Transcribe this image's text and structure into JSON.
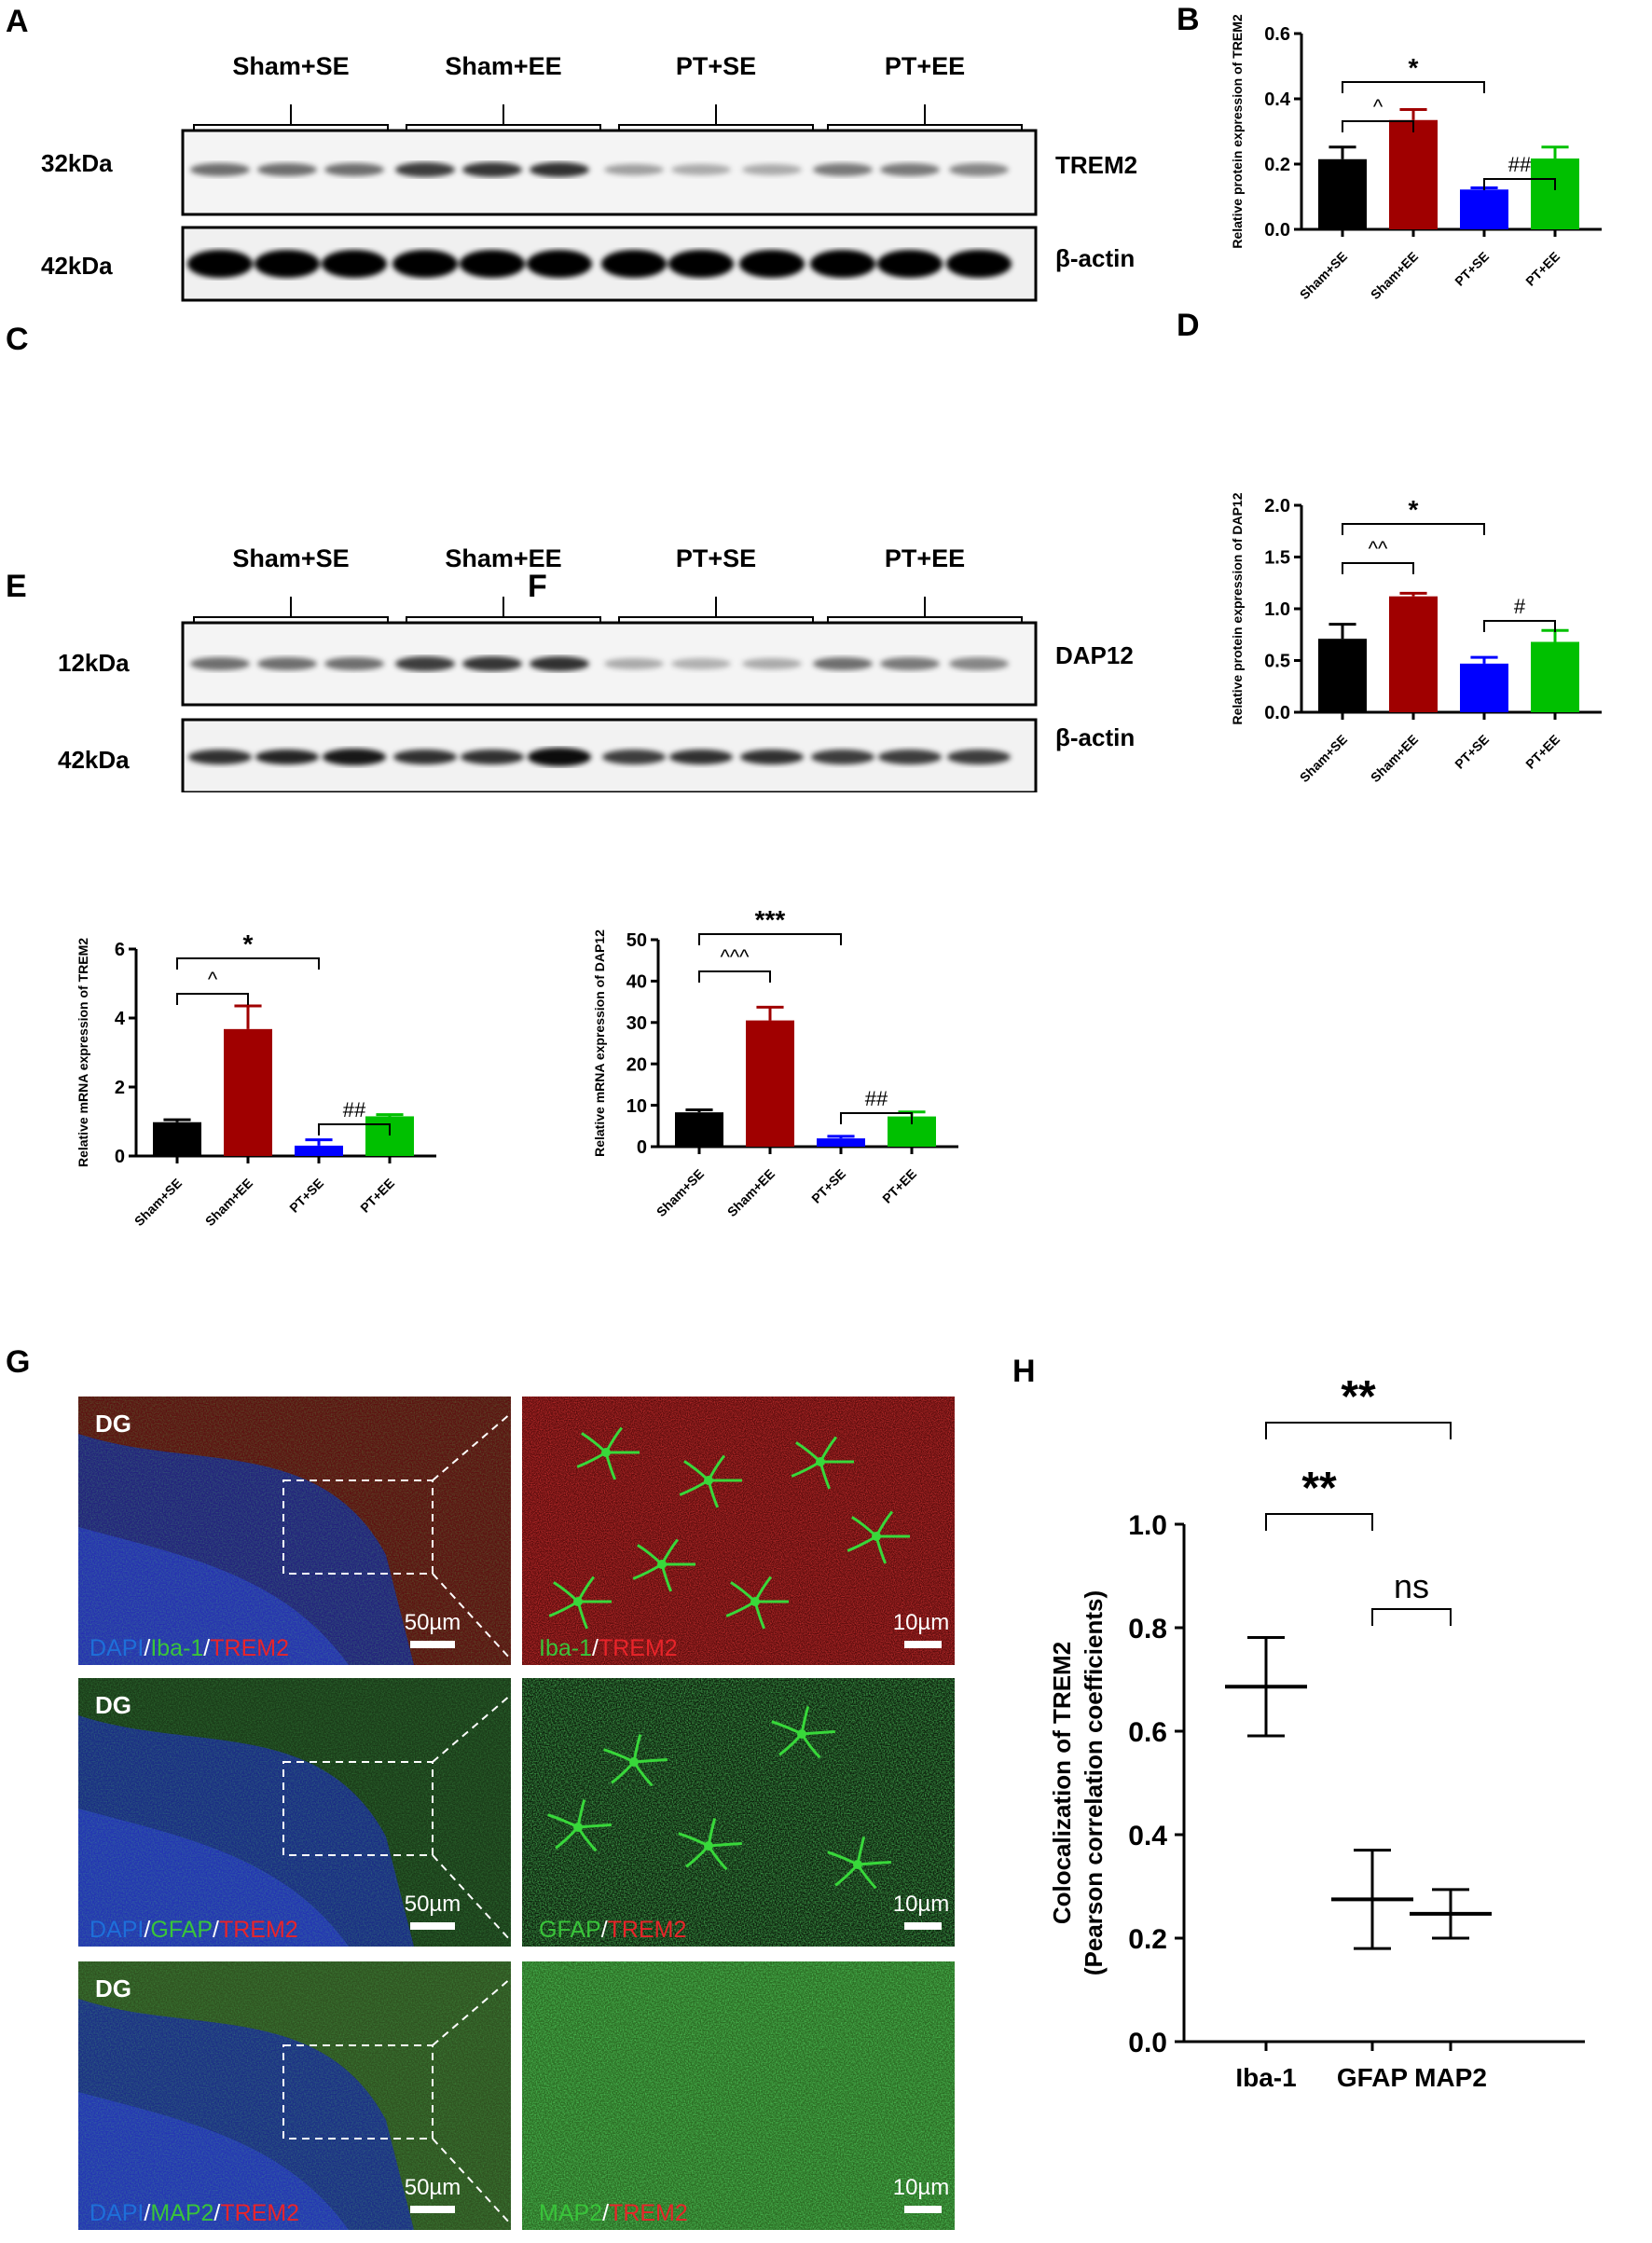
{
  "panels": {
    "A": "A",
    "B": "B",
    "C": "C",
    "D": "D",
    "E": "E",
    "F": "F",
    "G": "G",
    "H": "H"
  },
  "blotA": {
    "groups": [
      "Sham+SE",
      "Sham+EE",
      "PT+SE",
      "PT+EE"
    ],
    "rows": [
      {
        "mw": "32kDa",
        "target": "TREM2"
      },
      {
        "mw": "42kDa",
        "target": "β-actin"
      }
    ]
  },
  "blotC": {
    "groups": [
      "Sham+SE",
      "Sham+EE",
      "PT+SE",
      "PT+EE"
    ],
    "rows": [
      {
        "mw": "12kDa",
        "target": "DAP12"
      },
      {
        "mw": "42kDa",
        "target": "β-actin"
      }
    ]
  },
  "micrographs": {
    "region_label": "DG",
    "scale_overview": "50µm",
    "scale_zoom": "10µm",
    "rows": [
      {
        "overview": [
          {
            "t": "DAPI",
            "c": "#1e6fd9"
          },
          {
            "t": "/",
            "c": "#ffffff"
          },
          {
            "t": "Iba-1",
            "c": "#39c43a"
          },
          {
            "t": "/",
            "c": "#ffffff"
          },
          {
            "t": "TREM2",
            "c": "#e8242a"
          }
        ],
        "zoom": [
          {
            "t": "Iba-1",
            "c": "#39c43a"
          },
          {
            "t": "/",
            "c": "#ffffff"
          },
          {
            "t": "TREM2",
            "c": "#e8242a"
          }
        ]
      },
      {
        "overview": [
          {
            "t": "DAPI",
            "c": "#1e6fd9"
          },
          {
            "t": "/",
            "c": "#ffffff"
          },
          {
            "t": "GFAP",
            "c": "#39c43a"
          },
          {
            "t": "/",
            "c": "#ffffff"
          },
          {
            "t": "TREM2",
            "c": "#e8242a"
          }
        ],
        "zoom": [
          {
            "t": "GFAP",
            "c": "#39c43a"
          },
          {
            "t": "/",
            "c": "#ffffff"
          },
          {
            "t": "TREM2",
            "c": "#e8242a"
          }
        ]
      },
      {
        "overview": [
          {
            "t": "DAPI",
            "c": "#1e6fd9"
          },
          {
            "t": "/",
            "c": "#ffffff"
          },
          {
            "t": "MAP2",
            "c": "#39c43a"
          },
          {
            "t": "/",
            "c": "#ffffff"
          },
          {
            "t": "TREM2",
            "c": "#e8242a"
          }
        ],
        "zoom": [
          {
            "t": "MAP2",
            "c": "#39c43a"
          },
          {
            "t": "/",
            "c": "#ffffff"
          },
          {
            "t": "TREM2",
            "c": "#e8242a"
          }
        ]
      }
    ]
  },
  "chart_data": [
    {
      "id": "B",
      "type": "bar",
      "categories": [
        "Sham+SE",
        "Sham+EE",
        "PT+SE",
        "PT+EE"
      ],
      "values": [
        0.215,
        0.335,
        0.122,
        0.217
      ],
      "errors": [
        0.037,
        0.032,
        0.005,
        0.035
      ],
      "colors": [
        "#000000",
        "#a00000",
        "#0000ff",
        "#00c000"
      ],
      "ylabel": "Relative protein expression of TREM2",
      "ylim": [
        0,
        0.6
      ],
      "yticks": [
        "0.0",
        "0.2",
        "0.4",
        "0.6"
      ],
      "annotations": [
        {
          "from": 0,
          "to": 2,
          "label": "*"
        },
        {
          "from": 0,
          "to": 1,
          "label": "^"
        },
        {
          "from": 2,
          "to": 3,
          "label": "##"
        }
      ]
    },
    {
      "id": "D",
      "type": "bar",
      "categories": [
        "Sham+SE",
        "Sham+EE",
        "PT+SE",
        "PT+EE"
      ],
      "values": [
        0.71,
        1.12,
        0.47,
        0.68
      ],
      "errors": [
        0.14,
        0.03,
        0.06,
        0.11
      ],
      "colors": [
        "#000000",
        "#a00000",
        "#0000ff",
        "#00c000"
      ],
      "ylabel": "Relative protein expression of DAP12",
      "ylim": [
        0,
        2.0
      ],
      "yticks": [
        "0.0",
        "0.5",
        "1.0",
        "1.5",
        "2.0"
      ],
      "annotations": [
        {
          "from": 0,
          "to": 2,
          "label": "*"
        },
        {
          "from": 0,
          "to": 1,
          "label": "^^"
        },
        {
          "from": 2,
          "to": 3,
          "label": "#"
        }
      ]
    },
    {
      "id": "E",
      "type": "bar",
      "categories": [
        "Sham+SE",
        "Sham+EE",
        "PT+SE",
        "PT+EE"
      ],
      "values": [
        0.98,
        3.68,
        0.3,
        1.15
      ],
      "errors": [
        0.07,
        0.67,
        0.17,
        0.05
      ],
      "colors": [
        "#000000",
        "#a00000",
        "#0000ff",
        "#00c000"
      ],
      "ylabel": "Relative mRNA expression of TREM2",
      "ylim": [
        0,
        6
      ],
      "yticks": [
        "0",
        "2",
        "4",
        "6"
      ],
      "annotations": [
        {
          "from": 0,
          "to": 2,
          "label": "*"
        },
        {
          "from": 0,
          "to": 1,
          "label": "^"
        },
        {
          "from": 2,
          "to": 3,
          "label": "##"
        }
      ]
    },
    {
      "id": "F",
      "type": "bar",
      "categories": [
        "Sham+SE",
        "Sham+EE",
        "PT+SE",
        "PT+EE"
      ],
      "values": [
        8.3,
        30.5,
        2.0,
        7.3
      ],
      "errors": [
        0.6,
        3.2,
        0.5,
        1.1
      ],
      "colors": [
        "#000000",
        "#a00000",
        "#0000ff",
        "#00c000"
      ],
      "ylabel": "Relative mRNA expression of DAP12",
      "ylim": [
        0,
        50
      ],
      "yticks": [
        "0",
        "10",
        "20",
        "30",
        "40",
        "50"
      ],
      "annotations": [
        {
          "from": 0,
          "to": 2,
          "label": "***"
        },
        {
          "from": 0,
          "to": 1,
          "label": "^^^"
        },
        {
          "from": 2,
          "to": 3,
          "label": "##"
        }
      ]
    },
    {
      "id": "H",
      "type": "scatter",
      "categories": [
        "Iba-1",
        "GFAP",
        "MAP2"
      ],
      "values": [
        0.686,
        0.275,
        0.247
      ],
      "errors": [
        0.095,
        0.095,
        0.047
      ],
      "ylabel": "Colocalization of TREM2",
      "ylabel2": "(Pearson correlation coefficients)",
      "ylim": [
        0,
        1.0
      ],
      "yticks": [
        "0.0",
        "0.2",
        "0.4",
        "0.6",
        "0.8",
        "1.0"
      ],
      "annotations": [
        {
          "from": 0,
          "to": 2,
          "label": "**"
        },
        {
          "from": 0,
          "to": 1,
          "label": "**"
        },
        {
          "from": 1,
          "to": 2,
          "label": "ns"
        }
      ]
    }
  ]
}
